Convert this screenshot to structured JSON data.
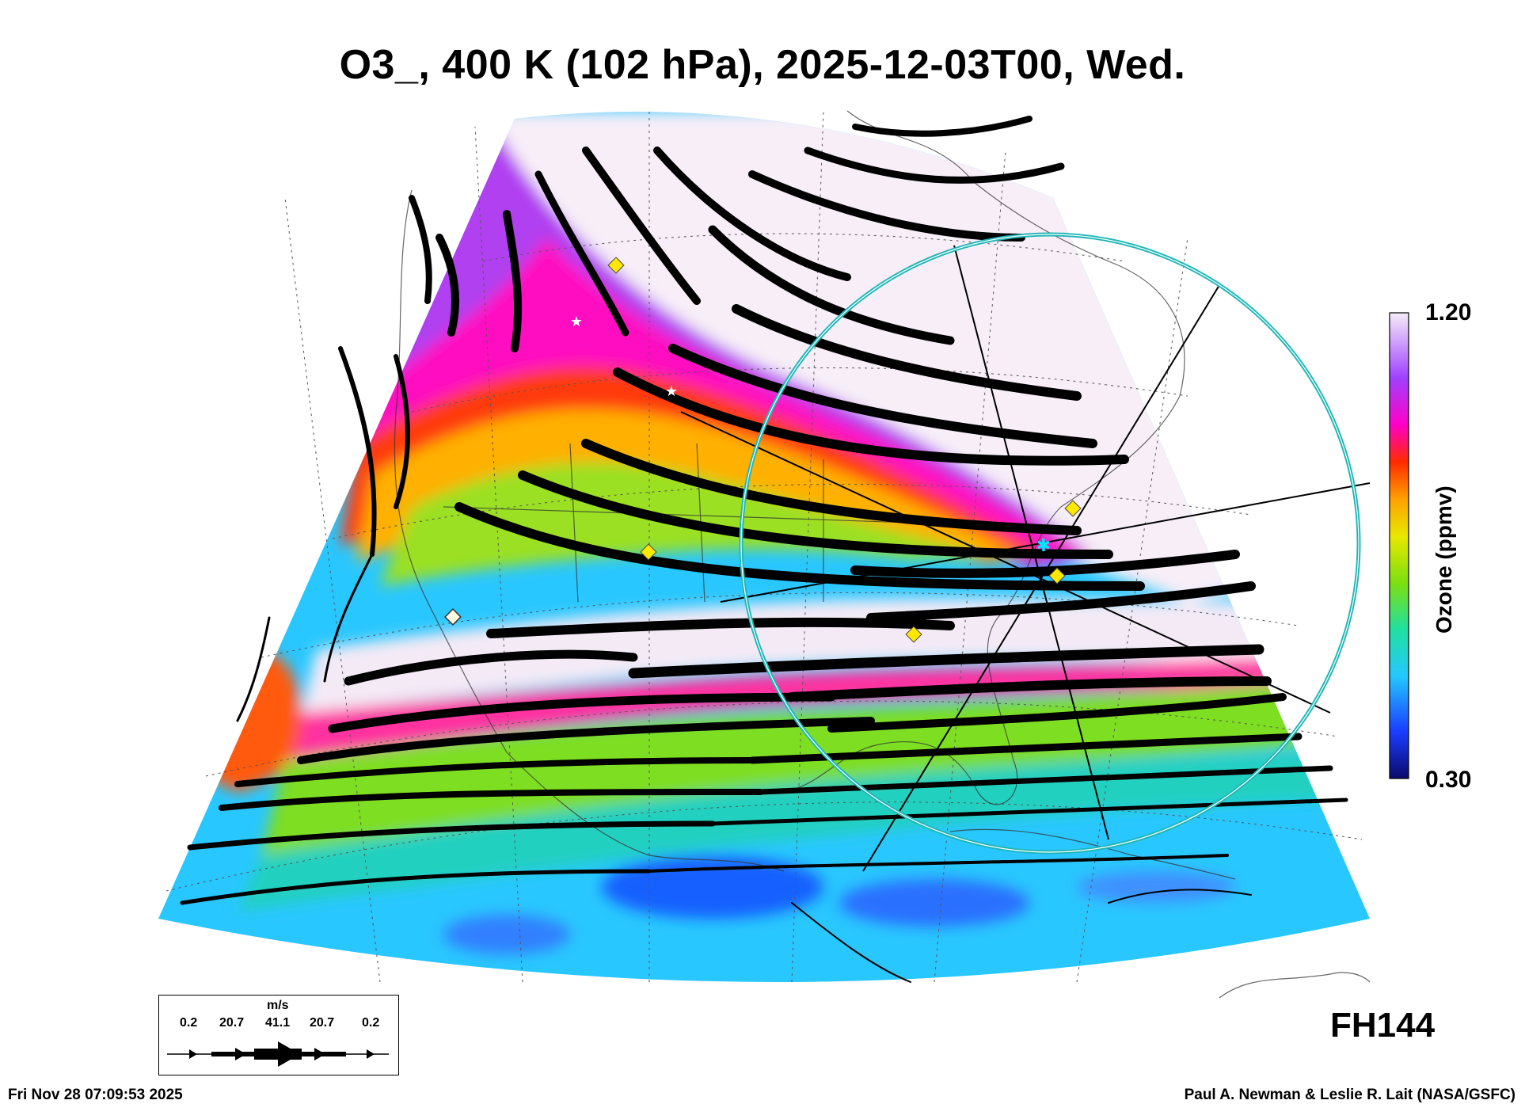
{
  "title": "O3_, 400 K (102 hPa), 2025-12-03T00, Wed.",
  "colorbar": {
    "max_label": "1.20",
    "min_label": "0.30",
    "axis_label": "Ozone (ppmv)",
    "range": [
      0.3,
      1.2
    ],
    "colors": [
      "#0a0a6a",
      "#1a3cff",
      "#24c8ff",
      "#20e0a0",
      "#7ddf10",
      "#e8e800",
      "#ffa000",
      "#ff2a00",
      "#ff00c8",
      "#a040ff",
      "#f6ecf8"
    ]
  },
  "forecast_hour": "FH144",
  "wind_legend": {
    "unit": "m/s",
    "values": [
      "0.2",
      "20.7",
      "41.1",
      "20.7",
      "0.2"
    ]
  },
  "footer": {
    "timestamp": "Fri Nov 28 07:09:53 2025",
    "credit": "Paul A. Newman & Leslie R. Lait (NASA/GSFC)"
  },
  "markers": {
    "center_marker": "cyan-star",
    "site_markers": "yellow-diamond",
    "other_markers": "white-star"
  }
}
